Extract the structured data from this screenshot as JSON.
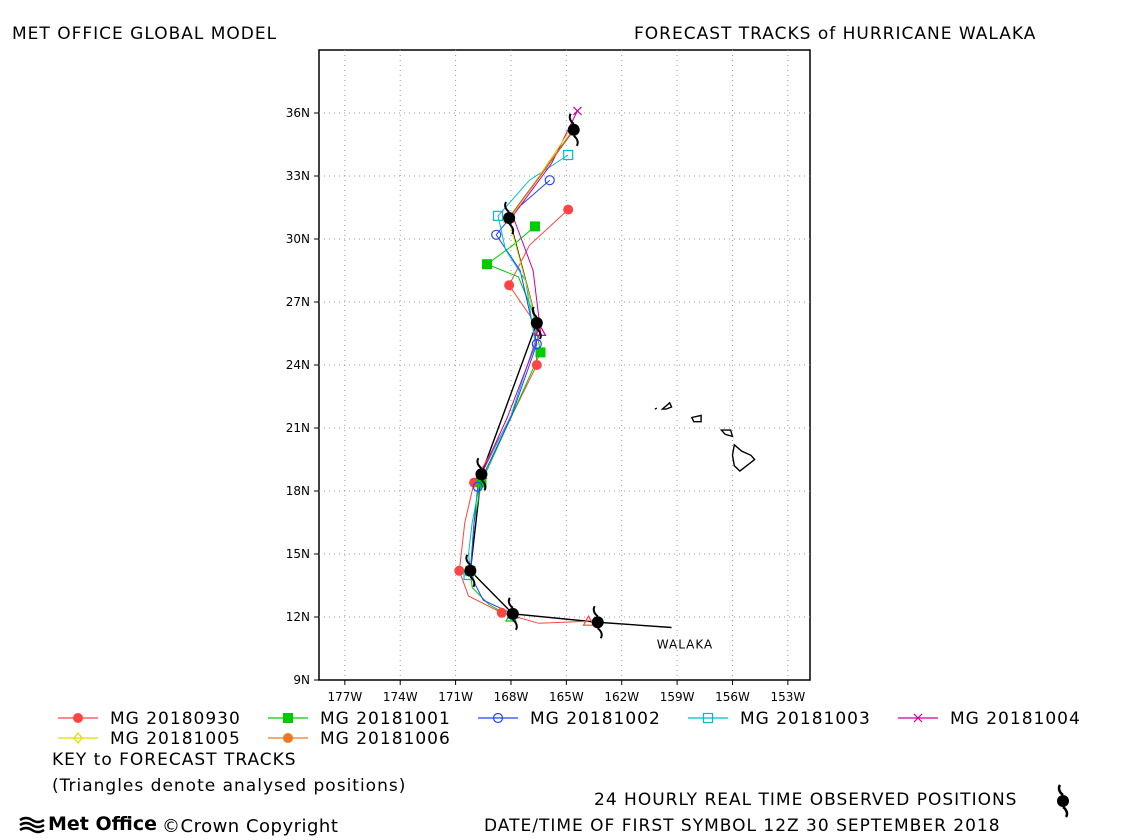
{
  "header": {
    "left_title": "MET OFFICE GLOBAL MODEL",
    "right_title": "FORECAST TRACKS of HURRICANE WALAKA"
  },
  "footer": {
    "key_title": "KEY to FORECAST TRACKS",
    "key_note": "(Triangles denote analysed positions)",
    "observed_label": "24 HOURLY REAL TIME OBSERVED POSITIONS",
    "datetime_label": "DATE/TIME OF FIRST SYMBOL 12Z 30 SEPTEMBER 2018",
    "logo_text": "Met Office",
    "copyright": "©Crown Copyright"
  },
  "chart_data": {
    "type": "line",
    "x_ticks": [
      -177,
      -174,
      -171,
      -168,
      -165,
      -162,
      -159,
      -156,
      -153
    ],
    "x_tick_labels": [
      "177W",
      "174W",
      "171W",
      "168W",
      "165W",
      "162W",
      "159W",
      "156W",
      "153W"
    ],
    "y_ticks": [
      9,
      12,
      15,
      18,
      21,
      24,
      27,
      30,
      33,
      36
    ],
    "y_tick_labels": [
      "9N",
      "12N",
      "15N",
      "18N",
      "21N",
      "24N",
      "27N",
      "30N",
      "33N",
      "36N"
    ],
    "xlim": [
      -178.4,
      -151.8
    ],
    "ylim": [
      9,
      39
    ],
    "grid": true,
    "storm_label": "WALAKA",
    "storm_label_pos": [
      -160.1,
      10.7
    ],
    "observed_track": [
      [
        -159.3,
        11.5
      ],
      [
        -163.3,
        11.75
      ],
      [
        -167.9,
        12.15
      ],
      [
        -170.2,
        14.2
      ],
      [
        -169.6,
        18.8
      ],
      [
        -166.6,
        26.0
      ],
      [
        -168.1,
        31.0
      ],
      [
        -164.6,
        35.2
      ]
    ],
    "observed_symbols": [
      [
        -163.3,
        11.75
      ],
      [
        -167.9,
        12.15
      ],
      [
        -170.2,
        14.2
      ],
      [
        -169.6,
        18.8
      ],
      [
        -166.6,
        26.0
      ],
      [
        -168.1,
        31.0
      ],
      [
        -164.6,
        35.2
      ]
    ],
    "series": [
      {
        "name": "MG 20180930",
        "color": "#ff4444",
        "marker": "dot",
        "points": [
          [
            -163.8,
            11.8
          ],
          [
            -166.5,
            11.7
          ],
          [
            -168.5,
            12.2
          ],
          [
            -170.3,
            13.0
          ],
          [
            -170.8,
            14.2
          ],
          [
            -170.5,
            16.5
          ],
          [
            -170.0,
            18.4
          ],
          [
            -168.0,
            21.5
          ],
          [
            -166.6,
            24.0
          ],
          [
            -166.7,
            26.0
          ],
          [
            -168.1,
            27.8
          ],
          [
            -167.0,
            29.7
          ],
          [
            -164.9,
            31.4
          ]
        ],
        "markers": [
          [
            -168.5,
            12.2
          ],
          [
            -170.8,
            14.2
          ],
          [
            -170.0,
            18.4
          ],
          [
            -166.6,
            24.0
          ],
          [
            -168.1,
            27.8
          ],
          [
            -164.9,
            31.4
          ]
        ]
      },
      {
        "name": "MG 20181001",
        "color": "#00cc00",
        "marker": "square",
        "points": [
          [
            -168.0,
            12.0
          ],
          [
            -169.2,
            12.6
          ],
          [
            -170.1,
            13.4
          ],
          [
            -170.2,
            14.2
          ],
          [
            -170.0,
            16.5
          ],
          [
            -169.6,
            18.4
          ],
          [
            -168.0,
            21.5
          ],
          [
            -166.4,
            24.6
          ],
          [
            -166.8,
            26.5
          ],
          [
            -167.6,
            28.2
          ],
          [
            -169.3,
            28.8
          ],
          [
            -167.9,
            29.7
          ],
          [
            -166.7,
            30.6
          ]
        ],
        "markers": [
          [
            -170.2,
            14.2
          ],
          [
            -169.6,
            18.4
          ],
          [
            -166.4,
            24.6
          ],
          [
            -169.3,
            28.8
          ],
          [
            -166.7,
            30.6
          ]
        ]
      },
      {
        "name": "MG 20181002",
        "color": "#2244ff",
        "marker": "circle",
        "points": [
          [
            -167.9,
            12.15
          ],
          [
            -169.5,
            12.8
          ],
          [
            -170.2,
            14.0
          ],
          [
            -170.0,
            16.5
          ],
          [
            -169.8,
            18.2
          ],
          [
            -168.0,
            21.5
          ],
          [
            -166.6,
            25.0
          ],
          [
            -167.5,
            28.5
          ],
          [
            -168.8,
            30.2
          ],
          [
            -167.6,
            31.5
          ],
          [
            -165.9,
            32.8
          ]
        ],
        "markers": [
          [
            -169.8,
            18.2
          ],
          [
            -166.6,
            25.0
          ],
          [
            -168.8,
            30.2
          ],
          [
            -165.9,
            32.8
          ]
        ]
      },
      {
        "name": "MG 20181003",
        "color": "#00bbcc",
        "marker": "square-open",
        "points": [
          [
            -170.2,
            14.2
          ],
          [
            -170.3,
            15.0
          ],
          [
            -170.1,
            16.5
          ],
          [
            -169.6,
            18.8
          ],
          [
            -168.0,
            21.6
          ],
          [
            -166.7,
            25.1
          ],
          [
            -167.2,
            28.0
          ],
          [
            -168.3,
            29.5
          ],
          [
            -168.7,
            31.1
          ],
          [
            -167.0,
            32.8
          ],
          [
            -164.9,
            34.0
          ]
        ],
        "markers": [
          [
            -170.3,
            14.0
          ],
          [
            -168.7,
            31.1
          ],
          [
            -164.9,
            34.0
          ]
        ]
      },
      {
        "name": "MG 20181004",
        "color": "#cc0099",
        "marker": "x",
        "points": [
          [
            -169.6,
            18.8
          ],
          [
            -168.2,
            21.5
          ],
          [
            -166.4,
            25.6
          ],
          [
            -166.8,
            28.5
          ],
          [
            -167.9,
            31.1
          ],
          [
            -165.8,
            33.6
          ],
          [
            -164.4,
            36.1
          ]
        ],
        "markers": [
          [
            -164.4,
            36.1
          ]
        ]
      },
      {
        "name": "MG 20181005",
        "color": "#dddd00",
        "marker": "diamond-open",
        "points": [
          [
            -166.6,
            26.0
          ],
          [
            -168.1,
            30.9
          ],
          [
            -164.7,
            35.3
          ]
        ],
        "markers": []
      },
      {
        "name": "MG 20181006",
        "color": "#ee7722",
        "marker": "dot",
        "points": [
          [
            -168.1,
            31.0
          ],
          [
            -164.6,
            35.2
          ]
        ],
        "markers": []
      }
    ],
    "analysed_triangles": [
      {
        "color": "#ff4444",
        "pos": [
          -163.8,
          11.8
        ]
      },
      {
        "color": "#00cc00",
        "pos": [
          -168.0,
          12.0
        ]
      },
      {
        "color": "#2244ff",
        "pos": [
          -167.9,
          12.15
        ]
      },
      {
        "color": "#00bbcc",
        "pos": [
          -170.2,
          14.2
        ]
      },
      {
        "color": "#cc0099",
        "pos": [
          -169.6,
          18.8
        ]
      },
      {
        "color": "#cc0099",
        "pos": [
          -166.4,
          25.6
        ]
      },
      {
        "color": "#dddd00",
        "pos": [
          -166.6,
          26.0
        ]
      },
      {
        "color": "#ee7722",
        "pos": [
          -168.1,
          31.0
        ]
      }
    ],
    "islands": [
      [
        [
          -159.8,
          21.9
        ],
        [
          -159.4,
          22.2
        ],
        [
          -159.3,
          22.0
        ],
        [
          -159.6,
          21.9
        ]
      ],
      [
        [
          -158.2,
          21.5
        ],
        [
          -157.7,
          21.6
        ],
        [
          -157.7,
          21.3
        ],
        [
          -158.1,
          21.3
        ]
      ],
      [
        [
          -156.6,
          20.9
        ],
        [
          -156.1,
          20.9
        ],
        [
          -156.0,
          20.6
        ],
        [
          -156.4,
          20.7
        ]
      ],
      [
        [
          -155.9,
          20.2
        ],
        [
          -155.5,
          19.9
        ],
        [
          -155.0,
          19.7
        ],
        [
          -154.8,
          19.5
        ],
        [
          -155.6,
          18.95
        ],
        [
          -155.9,
          19.2
        ],
        [
          -156.0,
          19.7
        ]
      ],
      [
        [
          -160.2,
          21.9
        ],
        [
          -160.1,
          21.95
        ]
      ]
    ]
  }
}
